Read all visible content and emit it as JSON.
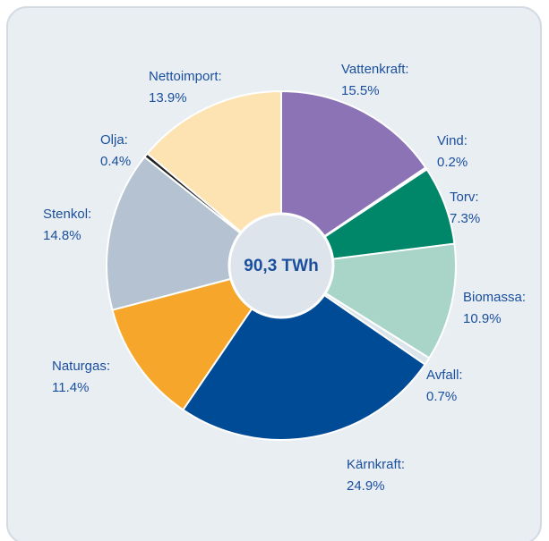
{
  "chart_data": {
    "type": "pie",
    "center_label": "90,3 TWh",
    "categories": [
      "Vattenkraft:",
      "Vind:",
      "Torv:",
      "Biomassa:",
      "Avfall:",
      "Kärnkraft:",
      "Naturgas:",
      "Stenkol:",
      "Olja:",
      "Nettoimport:"
    ],
    "values": [
      15.5,
      0.2,
      7.3,
      10.9,
      0.7,
      24.9,
      11.4,
      14.8,
      0.4,
      13.9
    ],
    "value_labels": [
      "15.5%",
      "0.2%",
      "7.3%",
      "10.9%",
      "0.7%",
      "24.9%",
      "11.4%",
      "14.8%",
      "0.4%",
      "13.9%"
    ],
    "colors": [
      "#8b73b5",
      "#e4ebf0",
      "#00876a",
      "#a8d5c8",
      "#dbe4ea",
      "#004b96",
      "#f6a72b",
      "#b4c2d2",
      "#222222",
      "#fde3b1"
    ]
  }
}
